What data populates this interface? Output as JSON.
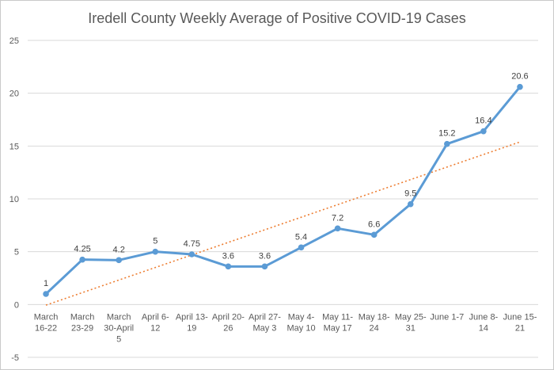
{
  "chart_data": {
    "type": "line",
    "title": "Iredell County Weekly Average of Positive COVID-19 Cases",
    "categories": [
      [
        "March",
        "16-22"
      ],
      [
        "March",
        "23-29"
      ],
      [
        "March",
        "30-April",
        "5"
      ],
      [
        "April 6-",
        "12"
      ],
      [
        "April 13-",
        "19"
      ],
      [
        "April 20-",
        "26"
      ],
      [
        "April 27-",
        "May 3"
      ],
      [
        "May 4-",
        "May 10"
      ],
      [
        "May 11-",
        "May 17"
      ],
      [
        "May 18-",
        "24"
      ],
      [
        "May 25-",
        "31"
      ],
      [
        "June 1-7"
      ],
      [
        "June 8-",
        "14"
      ],
      [
        "June 15-",
        "21"
      ]
    ],
    "series": [
      {
        "values": [
          1,
          4.25,
          4.2,
          5,
          4.75,
          3.6,
          3.6,
          5.4,
          7.2,
          6.6,
          9.5,
          15.2,
          16.4,
          20.6
        ],
        "labels": [
          "1",
          "4.25",
          "4.2",
          "5",
          "4.75",
          "3.6",
          "3.6",
          "5.4",
          "7.2",
          "6.6",
          "9.5",
          "15.2",
          "16.4",
          "20.6"
        ],
        "color": "#5b9bd5"
      }
    ],
    "trendline": {
      "type": "linear",
      "color": "#ed7d31",
      "style": "dotted"
    },
    "ylim": [
      -5,
      25
    ],
    "yticks": [
      -5,
      0,
      5,
      10,
      15,
      20,
      25
    ],
    "grid": true,
    "legend": "none",
    "xlabel": "",
    "ylabel": ""
  }
}
